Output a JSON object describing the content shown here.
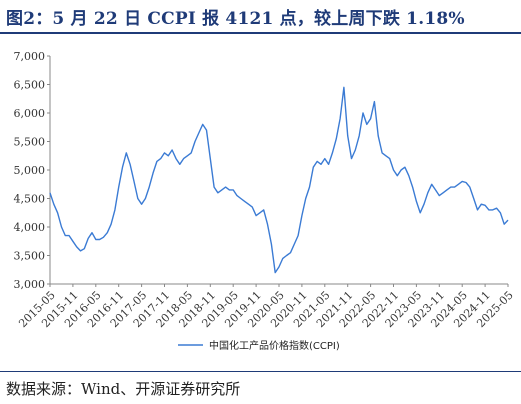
{
  "title": "图2：5 月 22 日 CCPI 报 4121 点，较上周下跌 1.18%",
  "source": "数据来源：Wind、开源证券研究所",
  "colors": {
    "line": "#3b7bd4",
    "title": "#1f3b78",
    "axis": "#888888"
  },
  "chart_data": {
    "type": "line",
    "title": "",
    "xlabel": "",
    "ylabel": "",
    "ylim": [
      3000,
      7000
    ],
    "yticks": [
      "3,000",
      "3,500",
      "4,000",
      "4,500",
      "5,000",
      "5,500",
      "6,000",
      "6,500",
      "7,000"
    ],
    "ytick_values": [
      3000,
      3500,
      4000,
      4500,
      5000,
      5500,
      6000,
      6500,
      7000
    ],
    "xlim": [
      "2015-05",
      "2025-05"
    ],
    "xticks": [
      "2015-05",
      "2015-11",
      "2016-05",
      "2016-11",
      "2017-05",
      "2017-11",
      "2018-05",
      "2018-11",
      "2019-05",
      "2019-11",
      "2020-05",
      "2020-11",
      "2021-05",
      "2021-11",
      "2022-05",
      "2022-11",
      "2023-05",
      "2023-11",
      "2024-05",
      "2024-11",
      "2025-05"
    ],
    "grid": false,
    "legend_position": "bottom-center",
    "series": [
      {
        "name": "中国化工产品价格指数(CCPI)",
        "points": [
          [
            "2015-05",
            4600
          ],
          [
            "2015-06",
            4400
          ],
          [
            "2015-07",
            4250
          ],
          [
            "2015-08",
            4000
          ],
          [
            "2015-09",
            3850
          ],
          [
            "2015-10",
            3850
          ],
          [
            "2015-11",
            3750
          ],
          [
            "2015-12",
            3650
          ],
          [
            "2016-01",
            3580
          ],
          [
            "2016-02",
            3620
          ],
          [
            "2016-03",
            3800
          ],
          [
            "2016-04",
            3900
          ],
          [
            "2016-05",
            3780
          ],
          [
            "2016-06",
            3780
          ],
          [
            "2016-07",
            3820
          ],
          [
            "2016-08",
            3900
          ],
          [
            "2016-09",
            4050
          ],
          [
            "2016-10",
            4300
          ],
          [
            "2016-11",
            4700
          ],
          [
            "2016-12",
            5050
          ],
          [
            "2017-01",
            5300
          ],
          [
            "2017-02",
            5100
          ],
          [
            "2017-03",
            4800
          ],
          [
            "2017-04",
            4500
          ],
          [
            "2017-05",
            4400
          ],
          [
            "2017-06",
            4500
          ],
          [
            "2017-07",
            4700
          ],
          [
            "2017-08",
            4950
          ],
          [
            "2017-09",
            5150
          ],
          [
            "2017-10",
            5200
          ],
          [
            "2017-11",
            5300
          ],
          [
            "2017-12",
            5250
          ],
          [
            "2018-01",
            5350
          ],
          [
            "2018-02",
            5200
          ],
          [
            "2018-03",
            5100
          ],
          [
            "2018-04",
            5200
          ],
          [
            "2018-05",
            5250
          ],
          [
            "2018-06",
            5300
          ],
          [
            "2018-07",
            5500
          ],
          [
            "2018-08",
            5650
          ],
          [
            "2018-09",
            5800
          ],
          [
            "2018-10",
            5700
          ],
          [
            "2018-11",
            5200
          ],
          [
            "2018-12",
            4700
          ],
          [
            "2019-01",
            4600
          ],
          [
            "2019-02",
            4650
          ],
          [
            "2019-03",
            4700
          ],
          [
            "2019-04",
            4650
          ],
          [
            "2019-05",
            4650
          ],
          [
            "2019-06",
            4550
          ],
          [
            "2019-07",
            4500
          ],
          [
            "2019-08",
            4450
          ],
          [
            "2019-09",
            4400
          ],
          [
            "2019-10",
            4350
          ],
          [
            "2019-11",
            4200
          ],
          [
            "2019-12",
            4250
          ],
          [
            "2020-01",
            4300
          ],
          [
            "2020-02",
            4050
          ],
          [
            "2020-03",
            3700
          ],
          [
            "2020-04",
            3200
          ],
          [
            "2020-05",
            3300
          ],
          [
            "2020-06",
            3450
          ],
          [
            "2020-07",
            3500
          ],
          [
            "2020-08",
            3550
          ],
          [
            "2020-09",
            3700
          ],
          [
            "2020-10",
            3850
          ],
          [
            "2020-11",
            4200
          ],
          [
            "2020-12",
            4500
          ],
          [
            "2021-01",
            4700
          ],
          [
            "2021-02",
            5050
          ],
          [
            "2021-03",
            5150
          ],
          [
            "2021-04",
            5100
          ],
          [
            "2021-05",
            5200
          ],
          [
            "2021-06",
            5100
          ],
          [
            "2021-07",
            5300
          ],
          [
            "2021-08",
            5550
          ],
          [
            "2021-09",
            5900
          ],
          [
            "2021-10",
            6450
          ],
          [
            "2021-11",
            5600
          ],
          [
            "2021-12",
            5200
          ],
          [
            "2022-01",
            5350
          ],
          [
            "2022-02",
            5600
          ],
          [
            "2022-03",
            6000
          ],
          [
            "2022-04",
            5800
          ],
          [
            "2022-05",
            5900
          ],
          [
            "2022-06",
            6200
          ],
          [
            "2022-07",
            5600
          ],
          [
            "2022-08",
            5300
          ],
          [
            "2022-09",
            5250
          ],
          [
            "2022-10",
            5200
          ],
          [
            "2022-11",
            5000
          ],
          [
            "2022-12",
            4900
          ],
          [
            "2023-01",
            5000
          ],
          [
            "2023-02",
            5050
          ],
          [
            "2023-03",
            4900
          ],
          [
            "2023-04",
            4700
          ],
          [
            "2023-05",
            4450
          ],
          [
            "2023-06",
            4250
          ],
          [
            "2023-07",
            4400
          ],
          [
            "2023-08",
            4600
          ],
          [
            "2023-09",
            4750
          ],
          [
            "2023-10",
            4650
          ],
          [
            "2023-11",
            4550
          ],
          [
            "2023-12",
            4600
          ],
          [
            "2024-01",
            4650
          ],
          [
            "2024-02",
            4700
          ],
          [
            "2024-03",
            4700
          ],
          [
            "2024-04",
            4750
          ],
          [
            "2024-05",
            4800
          ],
          [
            "2024-06",
            4780
          ],
          [
            "2024-07",
            4700
          ],
          [
            "2024-08",
            4500
          ],
          [
            "2024-09",
            4300
          ],
          [
            "2024-10",
            4400
          ],
          [
            "2024-11",
            4380
          ],
          [
            "2024-12",
            4300
          ],
          [
            "2025-01",
            4300
          ],
          [
            "2025-02",
            4330
          ],
          [
            "2025-03",
            4250
          ],
          [
            "2025-04",
            4050
          ],
          [
            "2025-05",
            4121
          ]
        ]
      }
    ]
  }
}
